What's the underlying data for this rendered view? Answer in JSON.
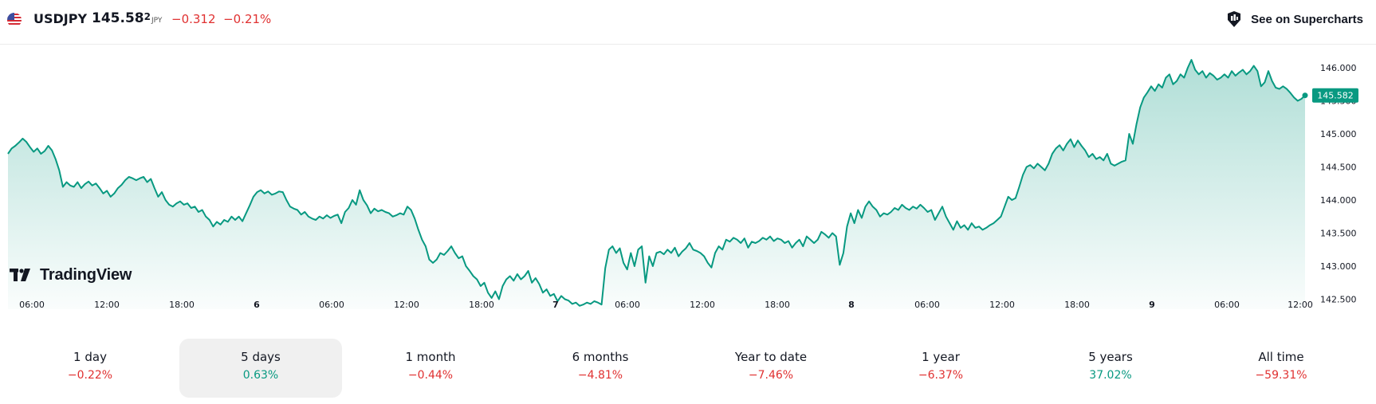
{
  "header": {
    "symbol": "USDJPY",
    "price_main": "145.58",
    "price_sup": "2",
    "currency": "JPY",
    "change_abs": "−0.312",
    "change_pct": "−0.21%",
    "supercharts_label": "See on Supercharts",
    "flag_icon": "us-flag-icon"
  },
  "colors": {
    "line": "#089981",
    "negative": "#e03131",
    "positive": "#089981"
  },
  "logo": {
    "text": "TradingView"
  },
  "chart_data": {
    "type": "area",
    "x_ticks": [
      "06:00",
      "12:00",
      "18:00",
      "6",
      "06:00",
      "12:00",
      "18:00",
      "7",
      "06:00",
      "12:00",
      "18:00",
      "8",
      "06:00",
      "12:00",
      "18:00",
      "9",
      "06:00",
      "12:00"
    ],
    "y_ticks": [
      "146.000",
      "145.500",
      "145.000",
      "144.500",
      "144.000",
      "143.500",
      "143.000",
      "142.500"
    ],
    "ylim": [
      142.35,
      146.35
    ],
    "last_price_label": "145.582",
    "series": [
      {
        "values": [
          144.7,
          144.78,
          144.82,
          144.87,
          144.93,
          144.88,
          144.8,
          144.73,
          144.78,
          144.7,
          144.74,
          144.82,
          144.75,
          144.62,
          144.45,
          144.2,
          144.27,
          144.22,
          144.2,
          144.27,
          144.18,
          144.24,
          144.28,
          144.22,
          144.25,
          144.18,
          144.1,
          144.14,
          144.05,
          144.1,
          144.18,
          144.23,
          144.3,
          144.35,
          144.33,
          144.3,
          144.33,
          144.35,
          144.27,
          144.32,
          144.18,
          144.05,
          144.12,
          144.0,
          143.93,
          143.9,
          143.95,
          143.98,
          143.93,
          143.95,
          143.88,
          143.9,
          143.82,
          143.85,
          143.75,
          143.7,
          143.6,
          143.67,
          143.63,
          143.7,
          143.67,
          143.75,
          143.7,
          143.75,
          143.68,
          143.8,
          143.92,
          144.05,
          144.12,
          144.15,
          144.1,
          144.13,
          144.08,
          144.1,
          144.13,
          144.12,
          144.0,
          143.9,
          143.87,
          143.85,
          143.78,
          143.82,
          143.75,
          143.72,
          143.7,
          143.75,
          143.72,
          143.77,
          143.73,
          143.76,
          143.78,
          143.65,
          143.82,
          143.88,
          144.0,
          143.93,
          144.15,
          144.0,
          143.92,
          143.8,
          143.87,
          143.83,
          143.85,
          143.82,
          143.8,
          143.75,
          143.77,
          143.8,
          143.78,
          143.9,
          143.85,
          143.72,
          143.55,
          143.4,
          143.3,
          143.1,
          143.05,
          143.1,
          143.2,
          143.17,
          143.23,
          143.3,
          143.2,
          143.12,
          143.15,
          143.0,
          142.93,
          142.85,
          142.8,
          142.7,
          142.75,
          142.6,
          142.52,
          142.62,
          142.5,
          142.7,
          142.8,
          142.85,
          142.78,
          142.88,
          142.8,
          142.85,
          142.93,
          142.75,
          142.82,
          142.73,
          142.6,
          142.65,
          142.55,
          142.58,
          142.47,
          142.55,
          142.5,
          142.48,
          142.43,
          142.45,
          142.4,
          142.42,
          142.45,
          142.43,
          142.47,
          142.45,
          142.42,
          142.97,
          143.25,
          143.3,
          143.2,
          143.27,
          143.05,
          142.95,
          143.2,
          143.0,
          143.25,
          143.3,
          142.75,
          143.15,
          143.0,
          143.2,
          143.22,
          143.18,
          143.25,
          143.2,
          143.28,
          143.15,
          143.22,
          143.27,
          143.35,
          143.25,
          143.23,
          143.2,
          143.15,
          143.05,
          142.98,
          143.2,
          143.3,
          143.25,
          143.4,
          143.37,
          143.43,
          143.4,
          143.35,
          143.42,
          143.28,
          143.37,
          143.35,
          143.38,
          143.43,
          143.4,
          143.45,
          143.38,
          143.42,
          143.4,
          143.35,
          143.38,
          143.28,
          143.35,
          143.4,
          143.3,
          143.45,
          143.4,
          143.35,
          143.4,
          143.52,
          143.48,
          143.43,
          143.5,
          143.45,
          143.02,
          143.2,
          143.6,
          143.8,
          143.65,
          143.85,
          143.73,
          143.9,
          143.98,
          143.9,
          143.85,
          143.75,
          143.8,
          143.78,
          143.82,
          143.88,
          143.85,
          143.93,
          143.88,
          143.85,
          143.9,
          143.87,
          143.93,
          143.88,
          143.82,
          143.85,
          143.7,
          143.8,
          143.9,
          143.75,
          143.65,
          143.55,
          143.68,
          143.58,
          143.62,
          143.55,
          143.65,
          143.58,
          143.6,
          143.55,
          143.58,
          143.62,
          143.65,
          143.7,
          143.75,
          143.9,
          144.05,
          144.0,
          144.03,
          144.2,
          144.38,
          144.5,
          144.53,
          144.48,
          144.55,
          144.5,
          144.45,
          144.55,
          144.7,
          144.78,
          144.83,
          144.75,
          144.85,
          144.92,
          144.8,
          144.9,
          144.82,
          144.75,
          144.65,
          144.7,
          144.62,
          144.65,
          144.6,
          144.7,
          144.55,
          144.52,
          144.55,
          144.58,
          144.6,
          145.0,
          144.85,
          145.15,
          145.4,
          145.55,
          145.63,
          145.72,
          145.65,
          145.75,
          145.7,
          145.85,
          145.9,
          145.75,
          145.8,
          145.9,
          145.85,
          146.0,
          146.12,
          145.97,
          145.9,
          145.95,
          145.85,
          145.92,
          145.88,
          145.82,
          145.85,
          145.9,
          145.85,
          145.95,
          145.88,
          145.93,
          145.97,
          145.9,
          145.95,
          146.03,
          145.95,
          145.72,
          145.78,
          145.95,
          145.8,
          145.7,
          145.68,
          145.72,
          145.68,
          145.62,
          145.55,
          145.5,
          145.53,
          145.582
        ]
      }
    ]
  },
  "periods": [
    {
      "label": "1 day",
      "value": "−0.22%",
      "sign": "neg"
    },
    {
      "label": "5 days",
      "value": "0.63%",
      "sign": "pos",
      "active": true
    },
    {
      "label": "1 month",
      "value": "−0.44%",
      "sign": "neg"
    },
    {
      "label": "6 months",
      "value": "−4.81%",
      "sign": "neg"
    },
    {
      "label": "Year to date",
      "value": "−7.46%",
      "sign": "neg"
    },
    {
      "label": "1 year",
      "value": "−6.37%",
      "sign": "neg"
    },
    {
      "label": "5 years",
      "value": "37.02%",
      "sign": "pos"
    },
    {
      "label": "All time",
      "value": "−59.31%",
      "sign": "neg"
    }
  ]
}
